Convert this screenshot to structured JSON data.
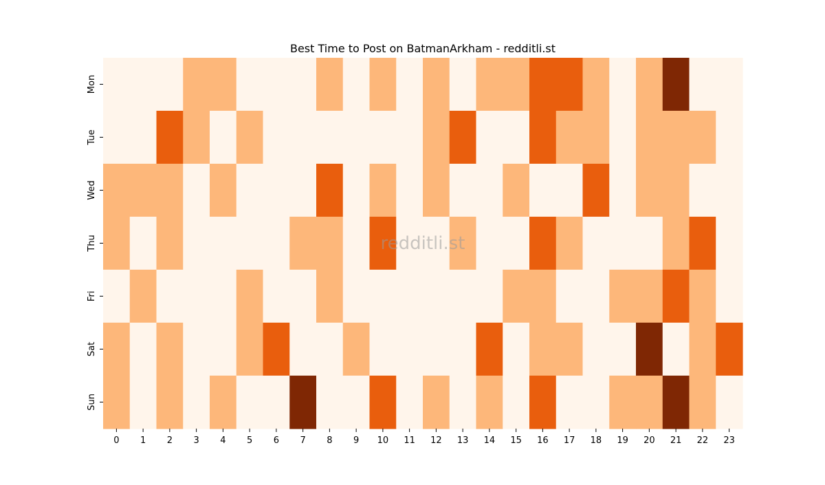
{
  "chart_data": {
    "type": "heatmap",
    "title": "Best Time to Post on BatmanArkham - redditli.st",
    "watermark": "redditli.st",
    "xlabel": "",
    "ylabel": "",
    "x_categories": [
      "0",
      "1",
      "2",
      "3",
      "4",
      "5",
      "6",
      "7",
      "8",
      "9",
      "10",
      "11",
      "12",
      "13",
      "14",
      "15",
      "16",
      "17",
      "18",
      "19",
      "20",
      "21",
      "22",
      "23"
    ],
    "y_categories": [
      "Mon",
      "Tue",
      "Wed",
      "Thu",
      "Fri",
      "Sat",
      "Sun"
    ],
    "values": [
      [
        0,
        0,
        0,
        1,
        1,
        0,
        0,
        0,
        1,
        0,
        1,
        0,
        1,
        0,
        1,
        1,
        2,
        2,
        1,
        0,
        1,
        3,
        0,
        0
      ],
      [
        0,
        0,
        2,
        1,
        0,
        1,
        0,
        0,
        0,
        0,
        0,
        0,
        1,
        2,
        0,
        0,
        2,
        1,
        1,
        0,
        1,
        1,
        1,
        0
      ],
      [
        1,
        1,
        1,
        0,
        1,
        0,
        0,
        0,
        2,
        0,
        1,
        0,
        1,
        0,
        0,
        1,
        0,
        0,
        2,
        0,
        1,
        1,
        0,
        0
      ],
      [
        1,
        0,
        1,
        0,
        0,
        0,
        0,
        1,
        1,
        0,
        2,
        0,
        0,
        1,
        0,
        0,
        2,
        1,
        0,
        0,
        0,
        1,
        2,
        0
      ],
      [
        0,
        1,
        0,
        0,
        0,
        1,
        0,
        0,
        1,
        0,
        0,
        0,
        0,
        0,
        0,
        1,
        1,
        0,
        0,
        1,
        1,
        2,
        1,
        0
      ],
      [
        1,
        0,
        1,
        0,
        0,
        1,
        2,
        0,
        0,
        1,
        0,
        0,
        0,
        0,
        2,
        0,
        1,
        1,
        0,
        0,
        3,
        0,
        1,
        2
      ],
      [
        1,
        0,
        1,
        0,
        1,
        0,
        0,
        3,
        0,
        0,
        2,
        0,
        1,
        0,
        1,
        0,
        2,
        0,
        0,
        1,
        1,
        3,
        1,
        0
      ]
    ],
    "value_range": [
      0,
      3
    ],
    "colormap": [
      "#fff5eb",
      "#fdb77a",
      "#e95e0d",
      "#7f2704"
    ],
    "colorbar": false,
    "grid": false
  }
}
